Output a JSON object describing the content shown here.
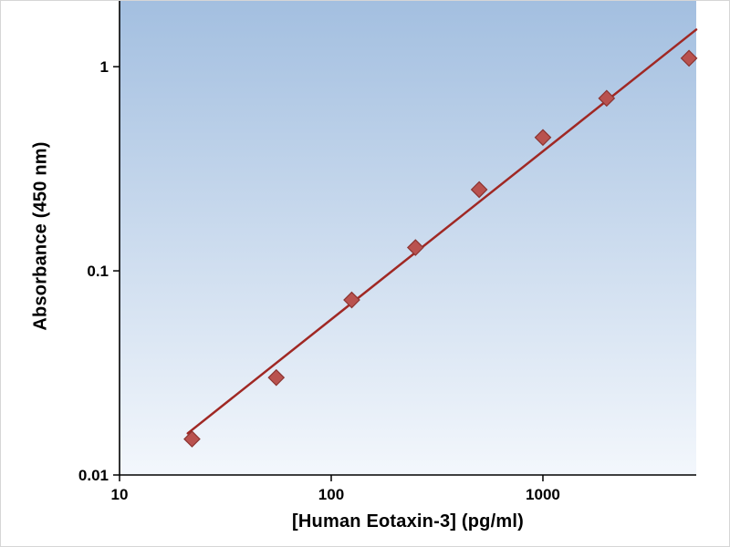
{
  "figure": {
    "background": "#ffffff",
    "border_color": "#d6d6d6"
  },
  "chart_data": {
    "type": "scatter",
    "title": "",
    "xlabel": "[Human Eotaxin-3] (pg/ml)",
    "ylabel": "Absorbance (450 nm)",
    "xscale": "log",
    "yscale": "log",
    "xlim": [
      10,
      5300
    ],
    "ylim": [
      0.01,
      2.1
    ],
    "x_ticks": [
      10,
      100,
      1000
    ],
    "x_tick_labels": [
      "10",
      "100",
      "1000"
    ],
    "y_ticks": [
      0.01,
      0.1,
      1
    ],
    "y_tick_labels": [
      "0.01",
      "0.1",
      "1"
    ],
    "grid": false,
    "legend_position": "none",
    "plot_background_gradient": {
      "top": "#a3bfe0",
      "bottom": "#f3f7fc"
    },
    "axis_color": "#000000",
    "series": [
      {
        "name": "standard-points",
        "type": "scatter",
        "marker": "diamond",
        "marker_color": "#b9524f",
        "marker_edge_color": "#8c3431",
        "x": [
          22,
          55,
          125,
          250,
          500,
          1000,
          2000,
          4900
        ],
        "y": [
          0.015,
          0.03,
          0.072,
          0.13,
          0.25,
          0.45,
          0.7,
          1.1
        ]
      },
      {
        "name": "trend-line",
        "type": "line",
        "line_color": "#a02824",
        "line_width": 2.5,
        "x": [
          21,
          5300
        ],
        "y": [
          0.016,
          1.52
        ]
      }
    ]
  }
}
